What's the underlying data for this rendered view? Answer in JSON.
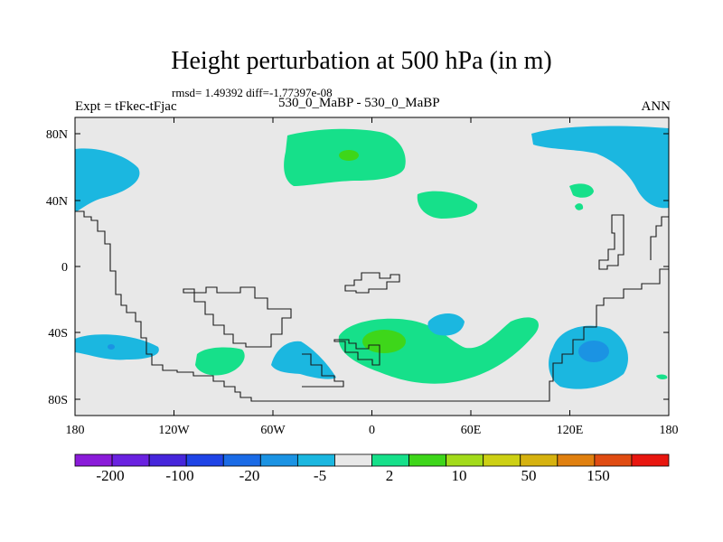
{
  "title": "Height perturbation at 500 hPa (in m)",
  "stats_text": "rmsd= 1.49392 diff=-1.77397e-08",
  "left_label": "Expt = tFkec-tFjac",
  "center_label": "530_0_MaBP - 530_0_MaBP",
  "right_label": "ANN",
  "map": {
    "lon_ticks": [
      "180",
      "120W",
      "60W",
      "0",
      "60E",
      "120E",
      "180"
    ],
    "lat_ticks": [
      "80N",
      "40N",
      "0",
      "40S",
      "80S"
    ]
  },
  "colorbar": {
    "colors": [
      "#8a1bd9",
      "#6a22e0",
      "#4626db",
      "#1f44e6",
      "#1a6be6",
      "#1b93e3",
      "#1bb7e0",
      "#e8e8e8",
      "#16e08a",
      "#3ed61a",
      "#a3db1a",
      "#cdd014",
      "#d6b20f",
      "#e0800f",
      "#e04c12",
      "#e8160f"
    ],
    "labels": [
      "-200",
      "-100",
      "-20",
      "-5",
      "2",
      "10",
      "50",
      "150"
    ]
  },
  "legend_colors": {
    "neutral": "#e8e8e8",
    "light_green": "#16e08a",
    "green": "#3ed61a",
    "cyan": "#1bb7e0",
    "blue": "#1b93e3"
  }
}
